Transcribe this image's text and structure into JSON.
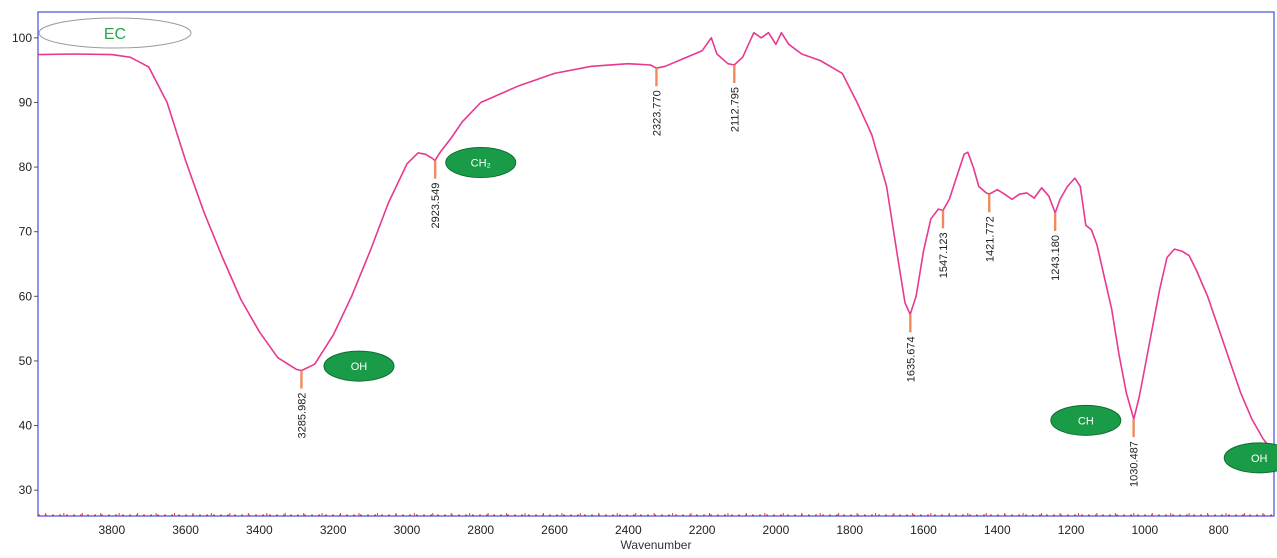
{
  "chart_data": {
    "type": "line",
    "xlabel": "Wavenumber",
    "ylabel": "",
    "xlim": [
      4000,
      650
    ],
    "ylim": [
      26,
      104
    ],
    "x_reversed": true,
    "x_ticks": [
      3800,
      3600,
      3400,
      3200,
      3000,
      2800,
      2600,
      2400,
      2200,
      2000,
      1800,
      1600,
      1400,
      1200,
      1000,
      800
    ],
    "y_ticks": [
      30,
      40,
      50,
      60,
      70,
      80,
      90,
      100
    ],
    "grid": false,
    "legend": "",
    "sample_label": "EC",
    "colors": {
      "line": "#e8388f",
      "frame": "#4b4bd6",
      "peak_marker": "#f08a5d",
      "group_badge": "#1a9b48",
      "sample_text": "#27a84a",
      "axis_ticks": "#e03a3a"
    },
    "series": [
      {
        "name": "",
        "points": [
          [
            4000,
            97.4
          ],
          [
            3900,
            97.5
          ],
          [
            3800,
            97.4
          ],
          [
            3750,
            97.0
          ],
          [
            3700,
            95.5
          ],
          [
            3650,
            90.0
          ],
          [
            3600,
            81.0
          ],
          [
            3550,
            73.0
          ],
          [
            3500,
            66.0
          ],
          [
            3450,
            59.5
          ],
          [
            3400,
            54.5
          ],
          [
            3350,
            50.5
          ],
          [
            3300,
            48.7
          ],
          [
            3286,
            48.5
          ],
          [
            3250,
            49.5
          ],
          [
            3200,
            54.0
          ],
          [
            3150,
            60.0
          ],
          [
            3100,
            67.0
          ],
          [
            3050,
            74.5
          ],
          [
            3000,
            80.5
          ],
          [
            2970,
            82.2
          ],
          [
            2950,
            82.0
          ],
          [
            2930,
            81.3
          ],
          [
            2924,
            81.0
          ],
          [
            2910,
            82.3
          ],
          [
            2880,
            84.5
          ],
          [
            2850,
            87.0
          ],
          [
            2800,
            90.0
          ],
          [
            2700,
            92.5
          ],
          [
            2600,
            94.5
          ],
          [
            2500,
            95.6
          ],
          [
            2400,
            96.0
          ],
          [
            2340,
            95.8
          ],
          [
            2324,
            95.3
          ],
          [
            2300,
            95.6
          ],
          [
            2250,
            96.8
          ],
          [
            2200,
            98.0
          ],
          [
            2175,
            100.0
          ],
          [
            2160,
            97.5
          ],
          [
            2130,
            96.0
          ],
          [
            2113,
            95.8
          ],
          [
            2090,
            97.0
          ],
          [
            2060,
            100.8
          ],
          [
            2040,
            100.0
          ],
          [
            2020,
            100.8
          ],
          [
            2000,
            99.0
          ],
          [
            1985,
            100.8
          ],
          [
            1965,
            99.0
          ],
          [
            1930,
            97.5
          ],
          [
            1880,
            96.5
          ],
          [
            1820,
            94.5
          ],
          [
            1780,
            90.0
          ],
          [
            1740,
            85.0
          ],
          [
            1700,
            77.0
          ],
          [
            1670,
            66.0
          ],
          [
            1650,
            59.0
          ],
          [
            1636,
            57.2
          ],
          [
            1620,
            60.0
          ],
          [
            1600,
            67.0
          ],
          [
            1580,
            72.0
          ],
          [
            1560,
            73.5
          ],
          [
            1547,
            73.3
          ],
          [
            1530,
            75.0
          ],
          [
            1510,
            78.5
          ],
          [
            1490,
            82.0
          ],
          [
            1480,
            82.3
          ],
          [
            1465,
            80.0
          ],
          [
            1450,
            77.0
          ],
          [
            1430,
            76.0
          ],
          [
            1422,
            75.8
          ],
          [
            1400,
            76.5
          ],
          [
            1380,
            75.8
          ],
          [
            1360,
            75.0
          ],
          [
            1340,
            75.8
          ],
          [
            1320,
            76.0
          ],
          [
            1300,
            75.2
          ],
          [
            1280,
            76.8
          ],
          [
            1260,
            75.5
          ],
          [
            1243,
            72.9
          ],
          [
            1230,
            75.0
          ],
          [
            1210,
            77.0
          ],
          [
            1190,
            78.3
          ],
          [
            1175,
            77.0
          ],
          [
            1160,
            71.0
          ],
          [
            1145,
            70.3
          ],
          [
            1130,
            68.0
          ],
          [
            1110,
            63.0
          ],
          [
            1090,
            58.0
          ],
          [
            1070,
            51.0
          ],
          [
            1050,
            45.0
          ],
          [
            1030,
            41.0
          ],
          [
            1015,
            44.5
          ],
          [
            1000,
            49.0
          ],
          [
            980,
            55.0
          ],
          [
            960,
            61.0
          ],
          [
            940,
            66.0
          ],
          [
            920,
            67.3
          ],
          [
            900,
            67.0
          ],
          [
            880,
            66.3
          ],
          [
            860,
            64.0
          ],
          [
            830,
            60.0
          ],
          [
            800,
            55.0
          ],
          [
            770,
            50.0
          ],
          [
            740,
            45.0
          ],
          [
            710,
            41.0
          ],
          [
            680,
            38.0
          ],
          [
            660,
            36.5
          ]
        ]
      }
    ],
    "peak_labels": [
      {
        "x": 3285.982,
        "y": 48.5,
        "label": "3285.982"
      },
      {
        "x": 2923.549,
        "y": 81.0,
        "label": "2923.549"
      },
      {
        "x": 2323.77,
        "y": 95.3,
        "label": "2323.770"
      },
      {
        "x": 2112.795,
        "y": 95.8,
        "label": "2112.795"
      },
      {
        "x": 1635.674,
        "y": 57.2,
        "label": "1635.674"
      },
      {
        "x": 1547.123,
        "y": 73.3,
        "label": "1547.123"
      },
      {
        "x": 1421.772,
        "y": 75.8,
        "label": "1421.772"
      },
      {
        "x": 1243.18,
        "y": 72.9,
        "label": "1243.180"
      },
      {
        "x": 1030.487,
        "y": 41.0,
        "label": "1030.487"
      }
    ],
    "annotations": [
      {
        "x": 3130,
        "y": 49.2,
        "label": "OH"
      },
      {
        "x": 2800,
        "y": 80.7,
        "label": "CH₂"
      },
      {
        "x": 1160,
        "y": 40.8,
        "label": "CH"
      },
      {
        "x": 690,
        "y": 35.0,
        "label": "OH"
      }
    ]
  }
}
